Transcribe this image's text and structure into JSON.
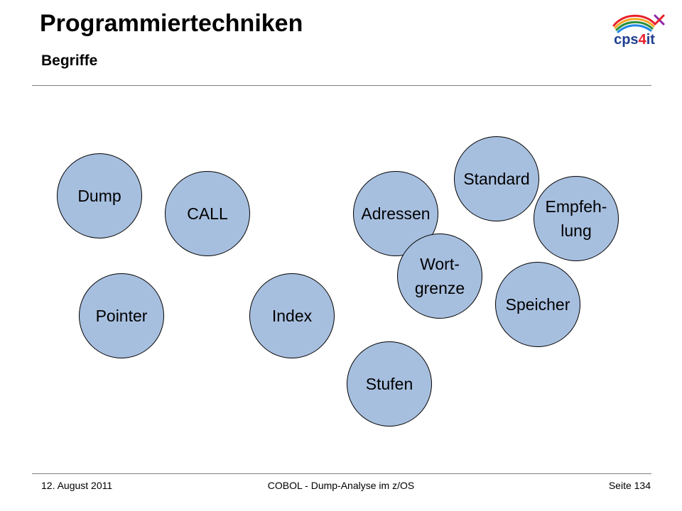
{
  "header": {
    "title": "Programmiertechniken",
    "subtitle": "Begriffe"
  },
  "logo": {
    "text": "cps4it",
    "text_color": "#1f3f8f",
    "accent_color": "#e8202a",
    "swoosh_colors": [
      "#e8202a",
      "#f5a623",
      "#2a8f3c",
      "#1e88e5",
      "#8e24aa"
    ]
  },
  "diagram": {
    "circle_fill": "#a7bfdf",
    "circle_stroke": "#000000",
    "terms": {
      "dump": "Dump",
      "call": "CALL",
      "pointer": "Pointer",
      "index": "Index",
      "adressen": "Adressen",
      "wortgrenze": "Wort-\ngrenze",
      "standard": "Standard",
      "empfehlung": "Empfeh-\nlung",
      "speicher": "Speicher",
      "stufen": "Stufen"
    }
  },
  "footer": {
    "date": "12. August 2011",
    "title": "COBOL - Dump-Analyse im z/OS",
    "page": "Seite 134"
  }
}
